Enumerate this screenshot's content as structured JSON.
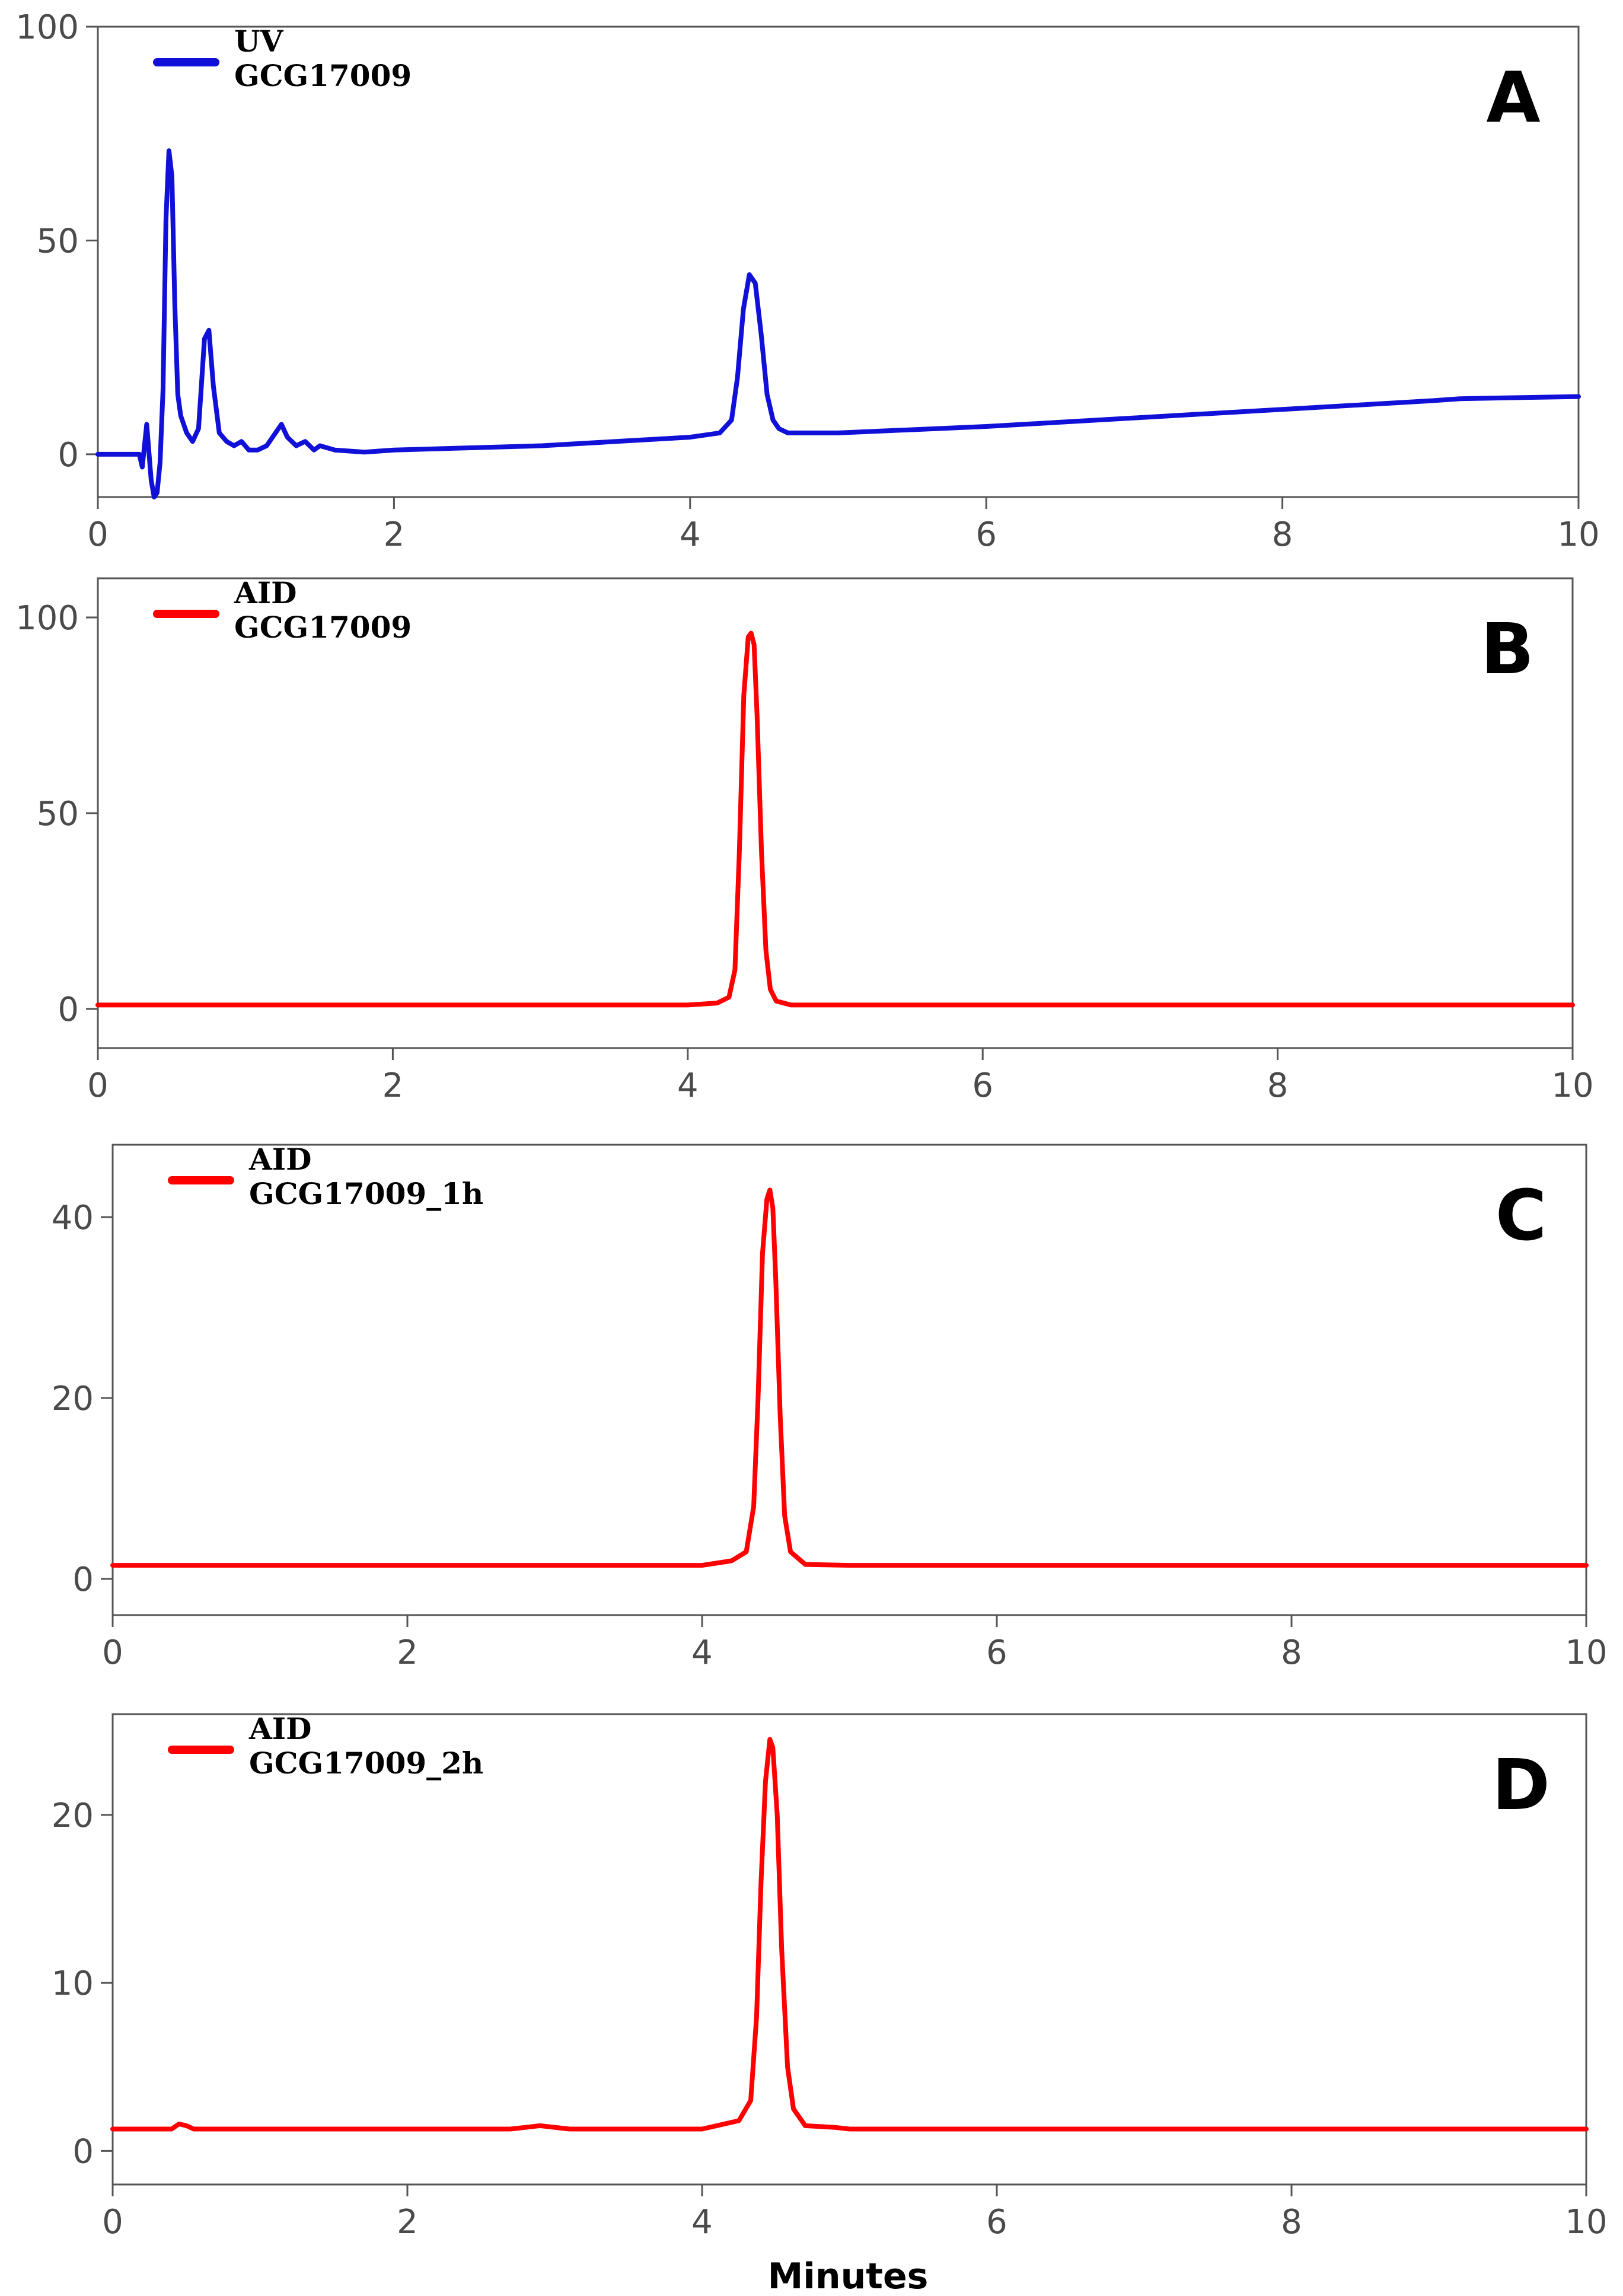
{
  "figure": {
    "x_axis_title": "Minutes"
  },
  "chart_data": [
    {
      "type": "line",
      "panel": "A",
      "legend": [
        "UV",
        "GCG17009"
      ],
      "color": "#1010d8",
      "xlim": [
        0,
        10
      ],
      "ylim": [
        -10,
        100
      ],
      "xticks": [
        "0",
        "2",
        "4",
        "6",
        "8",
        "10"
      ],
      "yticks": [
        {
          "value": 0,
          "label": "0"
        },
        {
          "value": 50,
          "label": "50"
        },
        {
          "value": 100,
          "label": "100"
        }
      ],
      "series": [
        {
          "name": "UV GCG17009",
          "x": [
            0,
            0.28,
            0.3,
            0.33,
            0.36,
            0.38,
            0.4,
            0.42,
            0.44,
            0.46,
            0.48,
            0.5,
            0.52,
            0.54,
            0.56,
            0.58,
            0.6,
            0.64,
            0.68,
            0.72,
            0.75,
            0.78,
            0.82,
            0.87,
            0.92,
            0.97,
            1.02,
            1.08,
            1.14,
            1.2,
            1.24,
            1.28,
            1.34,
            1.4,
            1.46,
            1.5,
            1.6,
            1.8,
            2.0,
            2.5,
            3.0,
            3.5,
            4.0,
            4.2,
            4.28,
            4.32,
            4.36,
            4.4,
            4.44,
            4.48,
            4.52,
            4.56,
            4.6,
            4.66,
            4.75,
            5.0,
            6.0,
            7.0,
            8.0,
            9.0,
            9.2,
            10.0
          ],
          "y": [
            0,
            0,
            -3,
            7,
            -6,
            -10,
            -9,
            -2,
            15,
            55,
            71,
            65,
            35,
            14,
            9,
            7,
            5,
            3,
            6,
            27,
            29,
            16,
            5,
            3,
            2,
            3,
            1,
            1,
            2,
            5,
            7,
            4,
            2,
            3,
            1,
            2,
            1,
            0.5,
            1,
            1.5,
            2,
            3,
            4,
            5,
            8,
            18,
            34,
            42,
            40,
            28,
            14,
            8,
            6,
            5,
            5,
            5,
            6.5,
            8.5,
            10.5,
            12.5,
            13,
            13.5
          ]
        }
      ]
    },
    {
      "type": "line",
      "panel": "B",
      "legend": [
        "AID",
        "GCG17009"
      ],
      "color": "#ff0000",
      "xlim": [
        0,
        10
      ],
      "ylim": [
        -10,
        110
      ],
      "xticks": [
        "0",
        "2",
        "4",
        "6",
        "8",
        "10"
      ],
      "yticks": [
        {
          "value": 0,
          "label": "0"
        },
        {
          "value": 50,
          "label": "50"
        },
        {
          "value": 100,
          "label": "100"
        }
      ],
      "series": [
        {
          "name": "AID GCG17009",
          "x": [
            0,
            4.0,
            4.2,
            4.28,
            4.32,
            4.35,
            4.38,
            4.41,
            4.43,
            4.45,
            4.47,
            4.5,
            4.53,
            4.56,
            4.6,
            4.7,
            5.0,
            10.0
          ],
          "y": [
            1,
            1,
            1.5,
            3,
            10,
            40,
            80,
            95,
            96,
            93,
            75,
            40,
            15,
            5,
            2,
            1,
            1,
            1
          ]
        }
      ]
    },
    {
      "type": "line",
      "panel": "C",
      "legend": [
        "AID",
        "GCG17009_1h"
      ],
      "color": "#ff0000",
      "xlim": [
        0,
        10
      ],
      "ylim": [
        -4,
        48
      ],
      "xticks": [
        "0",
        "2",
        "4",
        "6",
        "8",
        "10"
      ],
      "yticks": [
        {
          "value": 0,
          "label": "0"
        },
        {
          "value": 20,
          "label": "20"
        },
        {
          "value": 40,
          "label": "40"
        }
      ],
      "series": [
        {
          "name": "AID GCG17009_1h",
          "x": [
            0,
            4.0,
            4.2,
            4.3,
            4.35,
            4.38,
            4.41,
            4.44,
            4.46,
            4.48,
            4.5,
            4.53,
            4.56,
            4.6,
            4.7,
            5.0,
            10.0
          ],
          "y": [
            1.5,
            1.5,
            2,
            3,
            8,
            20,
            36,
            42,
            43,
            41,
            33,
            18,
            7,
            3,
            1.6,
            1.5,
            1.5
          ]
        }
      ]
    },
    {
      "type": "line",
      "panel": "D",
      "legend": [
        "AID",
        "GCG17009_2h"
      ],
      "color": "#ff0000",
      "xlim": [
        0,
        10
      ],
      "ylim": [
        -2,
        26
      ],
      "xticks": [
        "0",
        "2",
        "4",
        "6",
        "8",
        "10"
      ],
      "yticks": [
        {
          "value": 0,
          "label": "0"
        },
        {
          "value": 10,
          "label": "10"
        },
        {
          "value": 20,
          "label": "20"
        }
      ],
      "series": [
        {
          "name": "AID GCG17009_2h",
          "x": [
            0,
            0.4,
            0.45,
            0.5,
            0.55,
            2.7,
            2.9,
            3.1,
            4.0,
            4.25,
            4.33,
            4.37,
            4.4,
            4.43,
            4.46,
            4.48,
            4.51,
            4.54,
            4.58,
            4.62,
            4.7,
            4.9,
            5.0,
            10.0
          ],
          "y": [
            1.3,
            1.3,
            1.6,
            1.5,
            1.3,
            1.3,
            1.5,
            1.3,
            1.3,
            1.8,
            3,
            8,
            16,
            22,
            24.5,
            24,
            20,
            12,
            5,
            2.5,
            1.5,
            1.4,
            1.3,
            1.3
          ]
        }
      ]
    }
  ]
}
